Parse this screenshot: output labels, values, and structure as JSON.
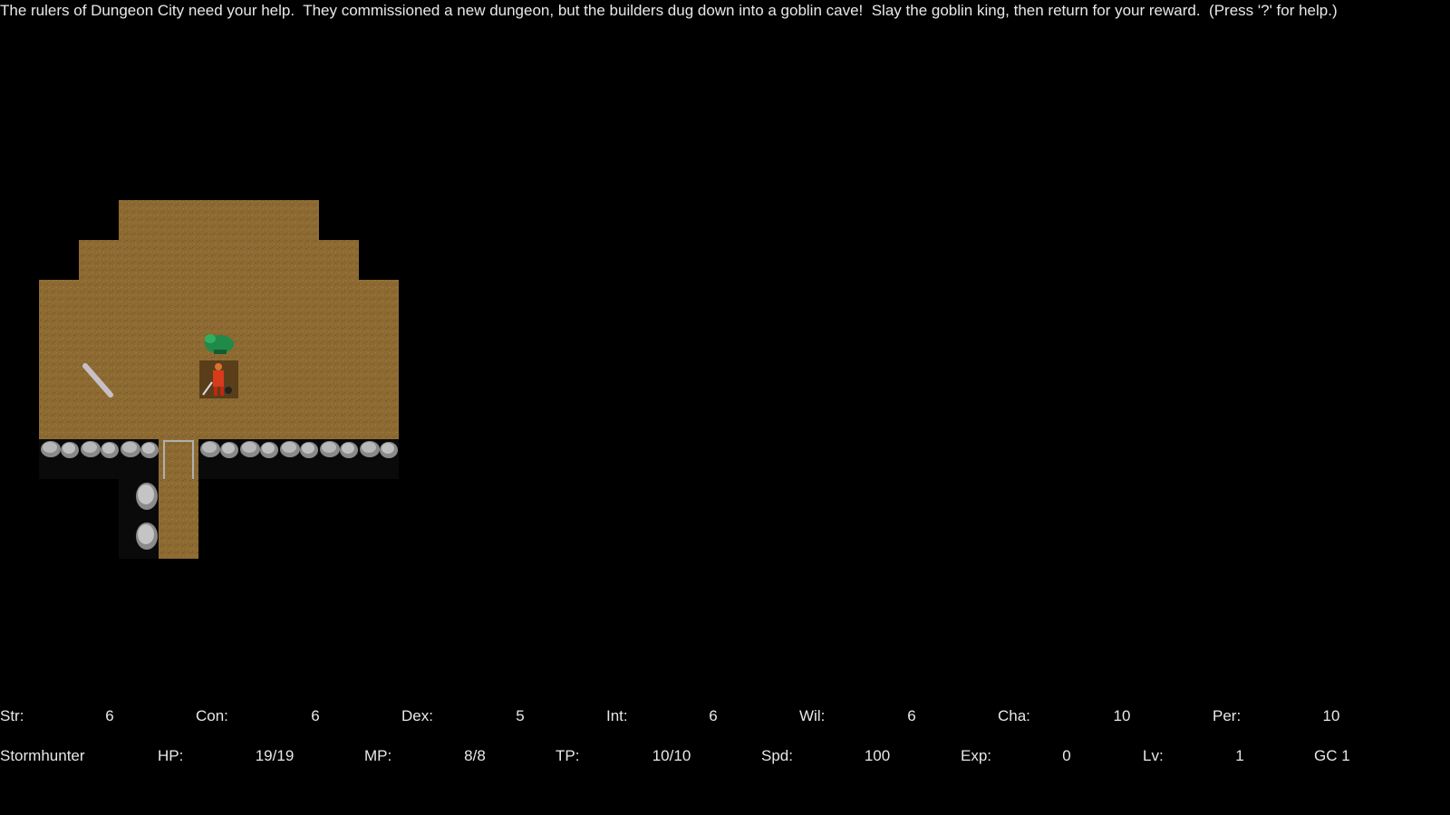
{
  "message": "The rulers of Dungeon City need your help.  They commissioned a new dungeon, but the builders dug down into a goblin cave!  Slay the goblin king, then return for your reward.  (Press '?' for help.)",
  "stats": [
    {
      "label": "Str:",
      "value": 6
    },
    {
      "label": "Con:",
      "value": 6
    },
    {
      "label": "Dex:",
      "value": 5
    },
    {
      "label": "Int:",
      "value": 6
    },
    {
      "label": "Wil:",
      "value": 6
    },
    {
      "label": "Cha:",
      "value": 10
    },
    {
      "label": "Per:",
      "value": 10
    }
  ],
  "status": {
    "name": "Stormhunter",
    "fields": [
      {
        "label": "HP:",
        "value": "19/19"
      },
      {
        "label": "MP:",
        "value": "8/8"
      },
      {
        "label": "TP:",
        "value": "10/10"
      },
      {
        "label": "Spd:",
        "value": 100
      },
      {
        "label": "Exp:",
        "value": 0
      },
      {
        "label": "Lv:",
        "value": 1
      }
    ],
    "location": "GC 1"
  }
}
